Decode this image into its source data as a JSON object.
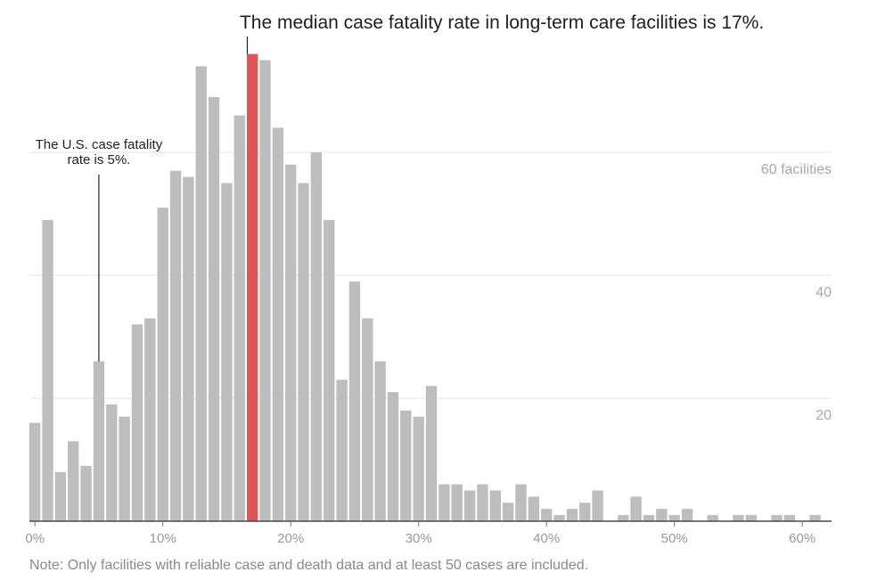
{
  "chart_data": {
    "type": "bar",
    "title": "",
    "xlabel": "",
    "ylabel": "",
    "bin_width_percent": 1,
    "x_start_percent": 0,
    "values": [
      16,
      49,
      8,
      13,
      9,
      26,
      19,
      17,
      32,
      33,
      51,
      57,
      56,
      74,
      69,
      55,
      66,
      76,
      75,
      64,
      58,
      55,
      60,
      49,
      23,
      39,
      33,
      26,
      21,
      18,
      17,
      22,
      6,
      6,
      5,
      6,
      5,
      3,
      6,
      4,
      2,
      1,
      2,
      3,
      5,
      0,
      1,
      4,
      1,
      2,
      1,
      2,
      0,
      1,
      0,
      1,
      1,
      0,
      1,
      1,
      0,
      1
    ],
    "highlight_index": 17,
    "xlim": [
      0,
      62
    ],
    "ylim": [
      0,
      80
    ],
    "y_ticks": [
      {
        "value": 20,
        "label": "20"
      },
      {
        "value": 40,
        "label": "40"
      },
      {
        "value": 60,
        "label": "60 facilities"
      }
    ],
    "x_ticks": [
      {
        "value": 0,
        "label": "0%"
      },
      {
        "value": 10,
        "label": "10%"
      },
      {
        "value": 20,
        "label": "20%"
      },
      {
        "value": 30,
        "label": "30%"
      },
      {
        "value": 40,
        "label": "40%"
      },
      {
        "value": 50,
        "label": "50%"
      },
      {
        "value": 60,
        "label": "60%"
      }
    ],
    "annotations": {
      "median": {
        "x": 17,
        "text": "The median case fatality rate in long-term care facilities is 17%."
      },
      "us_rate": {
        "x": 5,
        "lines": [
          "The U.S. case fatality",
          "rate is 5%."
        ]
      }
    },
    "grid": true,
    "legend": "none"
  },
  "note": "Note: Only facilities with reliable case and death data and at least 50 cases are included."
}
